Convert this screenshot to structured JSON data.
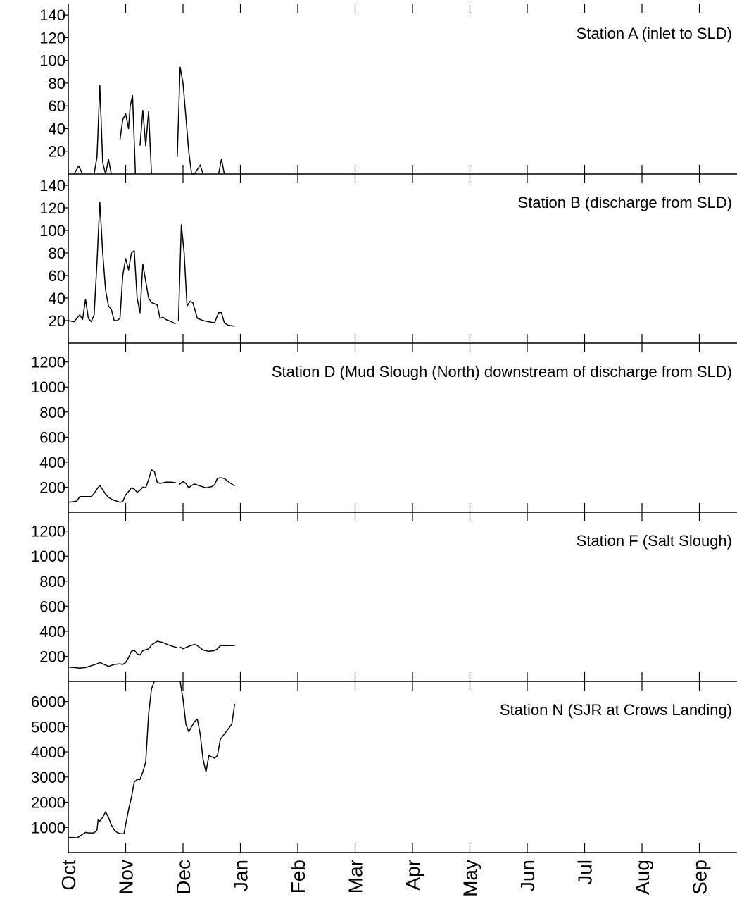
{
  "chart_data": [
    {
      "type": "line",
      "title": "Station A (inlet to SLD)",
      "ylim": [
        0,
        150
      ],
      "yticks": [
        20,
        40,
        60,
        80,
        100,
        120,
        140
      ],
      "segments": [
        [
          [
            0.1,
            0
          ],
          [
            0.18,
            7
          ],
          [
            0.25,
            0
          ]
        ],
        [
          [
            0.45,
            0
          ],
          [
            0.5,
            15
          ],
          [
            0.55,
            78
          ],
          [
            0.6,
            10
          ],
          [
            0.65,
            0
          ],
          [
            0.7,
            13
          ],
          [
            0.75,
            0
          ]
        ],
        [
          [
            0.9,
            30
          ],
          [
            0.95,
            48
          ],
          [
            1.0,
            53
          ],
          [
            1.05,
            40
          ],
          [
            1.08,
            60
          ],
          [
            1.12,
            69
          ],
          [
            1.17,
            0
          ]
        ],
        [
          [
            1.25,
            25
          ],
          [
            1.3,
            56
          ],
          [
            1.35,
            25
          ],
          [
            1.4,
            55
          ],
          [
            1.45,
            0
          ]
        ],
        [
          [
            1.9,
            15
          ],
          [
            1.95,
            94
          ],
          [
            2.0,
            80
          ],
          [
            2.05,
            50
          ],
          [
            2.1,
            20
          ],
          [
            2.15,
            0
          ],
          [
            2.2,
            0
          ],
          [
            2.3,
            8
          ],
          [
            2.35,
            0
          ]
        ],
        [
          [
            2.62,
            0
          ],
          [
            2.67,
            13
          ],
          [
            2.72,
            0
          ]
        ]
      ]
    },
    {
      "type": "line",
      "title": "Station B (discharge from SLD)",
      "ylim": [
        0,
        150
      ],
      "yticks": [
        20,
        40,
        60,
        80,
        100,
        120,
        140
      ],
      "segments": [
        [
          [
            0.0,
            20
          ],
          [
            0.1,
            19
          ],
          [
            0.15,
            22
          ],
          [
            0.2,
            25
          ],
          [
            0.25,
            21
          ],
          [
            0.3,
            39
          ],
          [
            0.35,
            22
          ],
          [
            0.4,
            19
          ],
          [
            0.45,
            25
          ],
          [
            0.5,
            72
          ],
          [
            0.55,
            125
          ],
          [
            0.6,
            80
          ],
          [
            0.65,
            47
          ],
          [
            0.7,
            33
          ],
          [
            0.75,
            30
          ],
          [
            0.8,
            20
          ],
          [
            0.85,
            20
          ],
          [
            0.9,
            22
          ],
          [
            0.95,
            60
          ],
          [
            1.0,
            75
          ],
          [
            1.05,
            65
          ],
          [
            1.1,
            80
          ],
          [
            1.15,
            82
          ],
          [
            1.2,
            40
          ],
          [
            1.25,
            27
          ],
          [
            1.3,
            70
          ],
          [
            1.35,
            55
          ],
          [
            1.4,
            40
          ],
          [
            1.45,
            36
          ],
          [
            1.5,
            35
          ],
          [
            1.55,
            34
          ],
          [
            1.6,
            22
          ],
          [
            1.65,
            23
          ],
          [
            1.7,
            21
          ],
          [
            1.75,
            20
          ],
          [
            1.8,
            19
          ],
          [
            1.87,
            17
          ]
        ],
        [
          [
            1.92,
            20
          ],
          [
            1.97,
            105
          ],
          [
            2.02,
            80
          ],
          [
            2.07,
            33
          ],
          [
            2.12,
            37
          ],
          [
            2.17,
            36
          ],
          [
            2.25,
            22
          ],
          [
            2.35,
            20
          ],
          [
            2.45,
            19
          ],
          [
            2.55,
            18
          ],
          [
            2.62,
            27
          ],
          [
            2.67,
            27
          ],
          [
            2.72,
            18
          ],
          [
            2.78,
            16
          ],
          [
            2.9,
            15
          ]
        ]
      ]
    },
    {
      "type": "line",
      "title": "Station D (Mud Slough (North) downstream of discharge from SLD)",
      "ylim": [
        0,
        1350
      ],
      "yticks": [
        200,
        400,
        600,
        800,
        1000,
        1200
      ],
      "segments": [
        [
          [
            0.0,
            80
          ],
          [
            0.1,
            85
          ],
          [
            0.15,
            90
          ],
          [
            0.2,
            125
          ],
          [
            0.3,
            125
          ],
          [
            0.4,
            125
          ],
          [
            0.45,
            150
          ],
          [
            0.5,
            185
          ],
          [
            0.55,
            215
          ],
          [
            0.6,
            180
          ],
          [
            0.65,
            145
          ],
          [
            0.7,
            120
          ],
          [
            0.75,
            105
          ],
          [
            0.8,
            95
          ],
          [
            0.9,
            80
          ],
          [
            0.95,
            85
          ],
          [
            1.0,
            140
          ],
          [
            1.05,
            165
          ],
          [
            1.1,
            195
          ],
          [
            1.15,
            185
          ],
          [
            1.2,
            160
          ],
          [
            1.25,
            175
          ],
          [
            1.3,
            200
          ],
          [
            1.35,
            195
          ],
          [
            1.4,
            260
          ],
          [
            1.45,
            340
          ],
          [
            1.5,
            325
          ],
          [
            1.55,
            240
          ],
          [
            1.6,
            230
          ],
          [
            1.7,
            240
          ],
          [
            1.8,
            240
          ],
          [
            1.88,
            235
          ]
        ],
        [
          [
            1.93,
            220
          ],
          [
            2.0,
            245
          ],
          [
            2.05,
            230
          ],
          [
            2.1,
            195
          ],
          [
            2.15,
            215
          ],
          [
            2.2,
            225
          ],
          [
            2.3,
            210
          ],
          [
            2.4,
            195
          ],
          [
            2.5,
            205
          ],
          [
            2.55,
            220
          ],
          [
            2.6,
            270
          ],
          [
            2.65,
            275
          ],
          [
            2.72,
            270
          ],
          [
            2.8,
            240
          ],
          [
            2.9,
            210
          ]
        ]
      ]
    },
    {
      "type": "line",
      "title": "Station F (Salt Slough)",
      "ylim": [
        0,
        1350
      ],
      "yticks": [
        200,
        400,
        600,
        800,
        1000,
        1200
      ],
      "segments": [
        [
          [
            0.0,
            115
          ],
          [
            0.1,
            110
          ],
          [
            0.2,
            105
          ],
          [
            0.3,
            110
          ],
          [
            0.4,
            125
          ],
          [
            0.5,
            140
          ],
          [
            0.55,
            150
          ],
          [
            0.6,
            140
          ],
          [
            0.7,
            120
          ],
          [
            0.8,
            135
          ],
          [
            0.9,
            140
          ],
          [
            0.95,
            135
          ],
          [
            1.0,
            150
          ],
          [
            1.05,
            190
          ],
          [
            1.1,
            240
          ],
          [
            1.15,
            250
          ],
          [
            1.2,
            220
          ],
          [
            1.25,
            210
          ],
          [
            1.3,
            245
          ],
          [
            1.4,
            260
          ],
          [
            1.45,
            290
          ],
          [
            1.55,
            320
          ],
          [
            1.65,
            310
          ],
          [
            1.75,
            290
          ],
          [
            1.85,
            275
          ],
          [
            1.9,
            270
          ]
        ],
        [
          [
            1.95,
            275
          ],
          [
            2.0,
            260
          ],
          [
            2.1,
            280
          ],
          [
            2.2,
            295
          ],
          [
            2.25,
            285
          ],
          [
            2.35,
            250
          ],
          [
            2.45,
            240
          ],
          [
            2.55,
            245
          ],
          [
            2.6,
            260
          ],
          [
            2.65,
            285
          ],
          [
            2.75,
            285
          ],
          [
            2.9,
            285
          ]
        ]
      ]
    },
    {
      "type": "line",
      "title": "Station N (SJR at Crows Landing)",
      "ylim": [
        0,
        6800
      ],
      "yticks": [
        1000,
        2000,
        3000,
        4000,
        5000,
        6000
      ],
      "segments": [
        [
          [
            0.0,
            600
          ],
          [
            0.1,
            600
          ],
          [
            0.15,
            580
          ],
          [
            0.2,
            650
          ],
          [
            0.3,
            800
          ],
          [
            0.35,
            780
          ],
          [
            0.45,
            780
          ],
          [
            0.5,
            900
          ],
          [
            0.52,
            1300
          ],
          [
            0.55,
            1250
          ],
          [
            0.6,
            1400
          ],
          [
            0.65,
            1620
          ],
          [
            0.7,
            1400
          ],
          [
            0.75,
            1100
          ],
          [
            0.8,
            900
          ],
          [
            0.85,
            800
          ],
          [
            0.9,
            750
          ],
          [
            0.97,
            750
          ],
          [
            1.05,
            1700
          ],
          [
            1.1,
            2200
          ],
          [
            1.15,
            2800
          ],
          [
            1.2,
            2900
          ],
          [
            1.25,
            2900
          ],
          [
            1.3,
            3200
          ],
          [
            1.35,
            3600
          ],
          [
            1.4,
            5500
          ],
          [
            1.45,
            6500
          ],
          [
            1.5,
            6900
          ]
        ],
        [
          [
            1.95,
            6900
          ],
          [
            2.0,
            6100
          ],
          [
            2.05,
            5100
          ],
          [
            2.1,
            4800
          ],
          [
            2.15,
            5000
          ],
          [
            2.2,
            5200
          ],
          [
            2.25,
            5300
          ],
          [
            2.3,
            4700
          ],
          [
            2.35,
            3700
          ],
          [
            2.4,
            3200
          ],
          [
            2.45,
            3850
          ],
          [
            2.5,
            3800
          ],
          [
            2.55,
            3750
          ],
          [
            2.6,
            3850
          ],
          [
            2.65,
            4500
          ],
          [
            2.75,
            4800
          ],
          [
            2.85,
            5100
          ],
          [
            2.9,
            5900
          ]
        ]
      ]
    }
  ],
  "x_axis": {
    "months": [
      "Oct",
      "Nov",
      "Dec",
      "Jan",
      "Feb",
      "Mar",
      "Apr",
      "May",
      "Jun",
      "Jul",
      "Aug",
      "Sep"
    ]
  }
}
